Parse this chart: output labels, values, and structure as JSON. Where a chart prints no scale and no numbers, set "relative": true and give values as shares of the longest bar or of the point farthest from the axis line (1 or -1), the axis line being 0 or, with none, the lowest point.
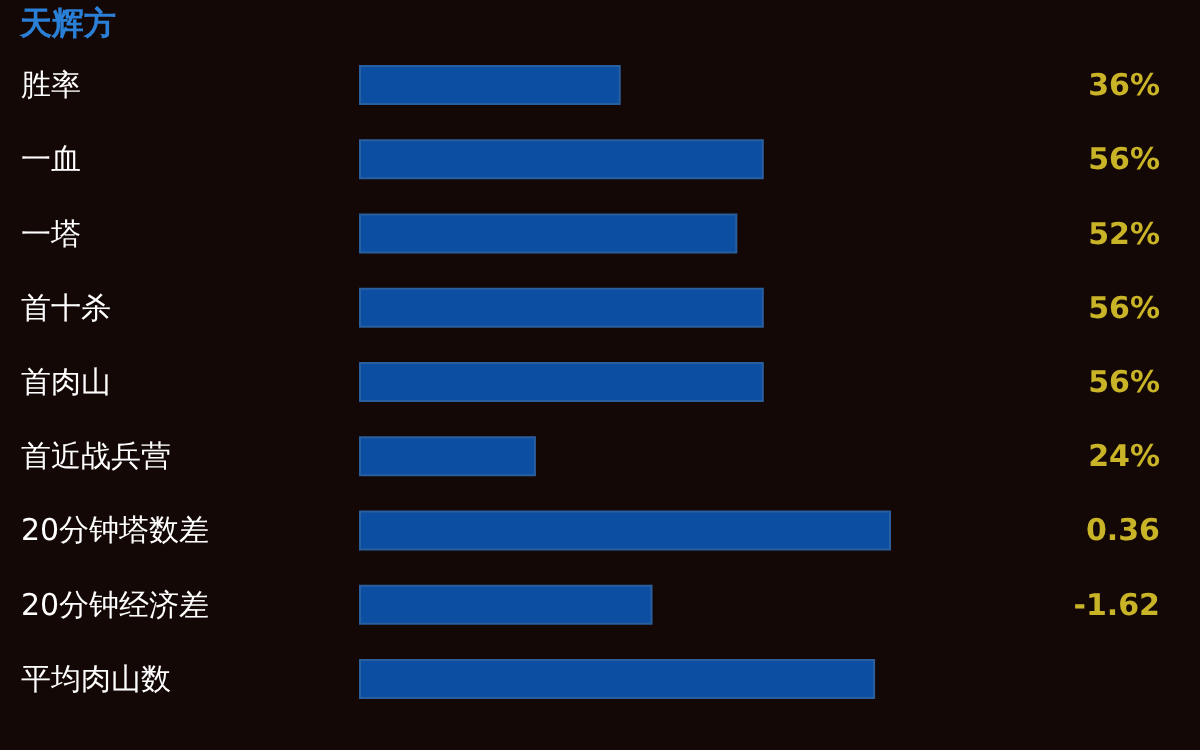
{
  "chart_data": {
    "type": "bar",
    "orientation": "horizontal",
    "relative": true,
    "title": "天辉方",
    "categories": [
      "胜率",
      "一血",
      "一塔",
      "首十杀",
      "首肉山",
      "首近战兵营",
      "20分钟塔数差",
      "20分钟经济差",
      "平均肉山数"
    ],
    "values": [
      0.49,
      0.76,
      0.71,
      0.76,
      0.76,
      0.33,
      1,
      0.55,
      0.97
    ],
    "annotations": [
      "36%",
      "56%",
      "52%",
      "56%",
      "56%",
      "24%",
      "0.36",
      "-1.62"
    ],
    "color": "#0b4ea2"
  }
}
